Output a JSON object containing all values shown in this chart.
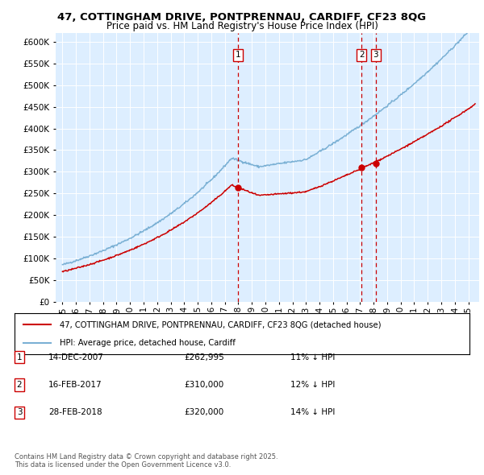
{
  "title_line1": "47, COTTINGHAM DRIVE, PONTPRENNAU, CARDIFF, CF23 8QG",
  "title_line2": "Price paid vs. HM Land Registry's House Price Index (HPI)",
  "background_color": "#ffffff",
  "plot_bg_color": "#ddeeff",
  "hpi_color": "#7ab0d4",
  "price_color": "#cc0000",
  "sale_line_color": "#cc0000",
  "ylim": [
    0,
    620000
  ],
  "yticks": [
    0,
    50000,
    100000,
    150000,
    200000,
    250000,
    300000,
    350000,
    400000,
    450000,
    500000,
    550000,
    600000
  ],
  "xlim_start": 1994.5,
  "xlim_end": 2025.8,
  "legend_entries": [
    "47, COTTINGHAM DRIVE, PONTPRENNAU, CARDIFF, CF23 8QG (detached house)",
    "HPI: Average price, detached house, Cardiff"
  ],
  "sale_events": [
    {
      "label": "1",
      "date": "14-DEC-2007",
      "price": "£262,995",
      "pct": "11% ↓ HPI",
      "year": 2007.96
    },
    {
      "label": "2",
      "date": "16-FEB-2017",
      "price": "£310,000",
      "pct": "12% ↓ HPI",
      "year": 2017.12
    },
    {
      "label": "3",
      "date": "28-FEB-2018",
      "price": "£320,000",
      "pct": "14% ↓ HPI",
      "year": 2018.16
    }
  ],
  "sale_values": [
    262995,
    310000,
    320000
  ],
  "footer_text": "Contains HM Land Registry data © Crown copyright and database right 2025.\nThis data is licensed under the Open Government Licence v3.0."
}
